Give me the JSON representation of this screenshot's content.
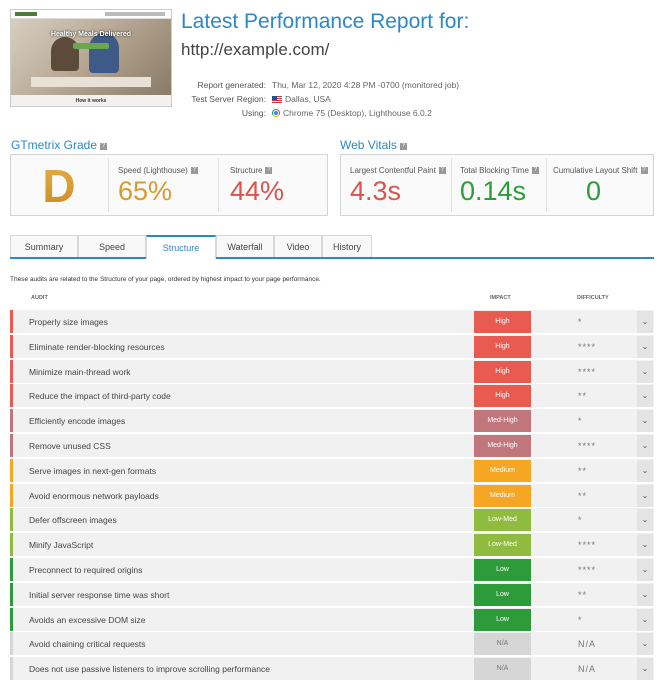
{
  "report": {
    "title": "Latest Performance Report for:",
    "url": "http://example.com/",
    "thumbnail": {
      "headline": "Healthy Meals Delivered",
      "caption": "How it works"
    },
    "meta": [
      {
        "label": "Report generated:",
        "value": "Thu, Mar 12, 2020 4:28 PM -0700 (monitored job)",
        "icon": ""
      },
      {
        "label": "Test Server Region:",
        "value": "Dallas, USA",
        "icon": "us-flag-icon"
      },
      {
        "label": "Using:",
        "value": "Chrome 75 (Desktop), Lighthouse 6.0.2",
        "icon": "chrome-icon"
      }
    ]
  },
  "grade": {
    "heading": "GTmetrix Grade",
    "letter": "D",
    "speed_label": "Speed (Lighthouse)",
    "speed_value": "65%",
    "structure_label": "Structure",
    "structure_value": "44%"
  },
  "vitals": {
    "heading": "Web Vitals",
    "lcp_label": "Largest Contentful Paint",
    "lcp_value": "4.3s",
    "tbt_label": "Total Blocking Time",
    "tbt_value": "0.14s",
    "cls_label": "Cumulative Layout Shift",
    "cls_value": "0"
  },
  "tabs": [
    "Summary",
    "Speed",
    "Structure",
    "Waterfall",
    "Video",
    "History"
  ],
  "active_tab": "Structure",
  "description": "These audits are related to the Structure of your page, ordered by highest impact to your page performance.",
  "columns": {
    "audit": "AUDIT",
    "impact": "IMPACT",
    "difficulty": "DIFFICULTY"
  },
  "colors": {
    "high": "#e95b50",
    "med_high": "#c0767b",
    "medium": "#f5a623",
    "low_med": "#8fbc3f",
    "low": "#2e9b3b",
    "na": "#d6d6d6",
    "accent": "#2c88c5",
    "speed": "#d79a2e",
    "structure": "#d9534f",
    "good": "#2e9b3b"
  },
  "audits": [
    {
      "name": "Properly size images",
      "impact": "High",
      "level": "high",
      "difficulty": "*"
    },
    {
      "name": "Eliminate render-blocking resources",
      "impact": "High",
      "level": "high",
      "difficulty": "****"
    },
    {
      "name": "Minimize main-thread work",
      "impact": "High",
      "level": "high",
      "difficulty": "****"
    },
    {
      "name": "Reduce the impact of third-party code",
      "impact": "High",
      "level": "high",
      "difficulty": "**"
    },
    {
      "name": "Efficiently encode images",
      "impact": "Med-High",
      "level": "med_high",
      "difficulty": "*"
    },
    {
      "name": "Remove unused CSS",
      "impact": "Med-High",
      "level": "med_high",
      "difficulty": "****"
    },
    {
      "name": "Serve images in next-gen formats",
      "impact": "Medium",
      "level": "medium",
      "difficulty": "**"
    },
    {
      "name": "Avoid enormous network payloads",
      "impact": "Medium",
      "level": "medium",
      "difficulty": "**"
    },
    {
      "name": "Defer offscreen images",
      "impact": "Low-Med",
      "level": "low_med",
      "difficulty": "*"
    },
    {
      "name": "Minify JavaScript",
      "impact": "Low-Med",
      "level": "low_med",
      "difficulty": "****"
    },
    {
      "name": "Preconnect to required origins",
      "impact": "Low",
      "level": "low",
      "difficulty": "****"
    },
    {
      "name": "Initial server response time was short",
      "impact": "Low",
      "level": "low",
      "difficulty": "**"
    },
    {
      "name": "Avoids an excessive DOM size",
      "impact": "Low",
      "level": "low",
      "difficulty": "*"
    },
    {
      "name": "Avoid chaining critical requests",
      "impact": "N/A",
      "level": "na",
      "difficulty": "N/A"
    },
    {
      "name": "Does not use passive listeners to improve scrolling performance",
      "impact": "N/A",
      "level": "na",
      "difficulty": "N/A"
    }
  ]
}
